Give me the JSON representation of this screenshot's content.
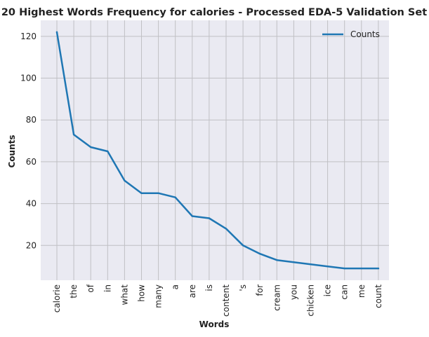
{
  "chart_data": {
    "type": "line",
    "title": "20 Highest Words Frequency for calories - Processed EDA-5 Validation Set",
    "xlabel": "Words",
    "ylabel": "Counts",
    "categories": [
      "calorie",
      "the",
      "of",
      "in",
      "what",
      "how",
      "many",
      "a",
      "are",
      "is",
      "content",
      "'s",
      "for",
      "cream",
      "you",
      "chicken",
      "ice",
      "can",
      "me",
      "count"
    ],
    "series": [
      {
        "name": "Counts",
        "values": [
          122,
          73,
          67,
          65,
          51,
          45,
          45,
          43,
          34,
          33,
          28,
          20,
          16,
          13,
          12,
          11,
          10,
          9,
          9,
          9
        ]
      }
    ],
    "ylim": [
      3.35,
      127.65
    ],
    "yticks": [
      20,
      40,
      60,
      80,
      100,
      120
    ],
    "grid": true,
    "legend_position": "top-right",
    "colors": {
      "line": "#1f77b4",
      "plot_background": "#eaeaf2",
      "grid": "#c0c0c4"
    }
  }
}
